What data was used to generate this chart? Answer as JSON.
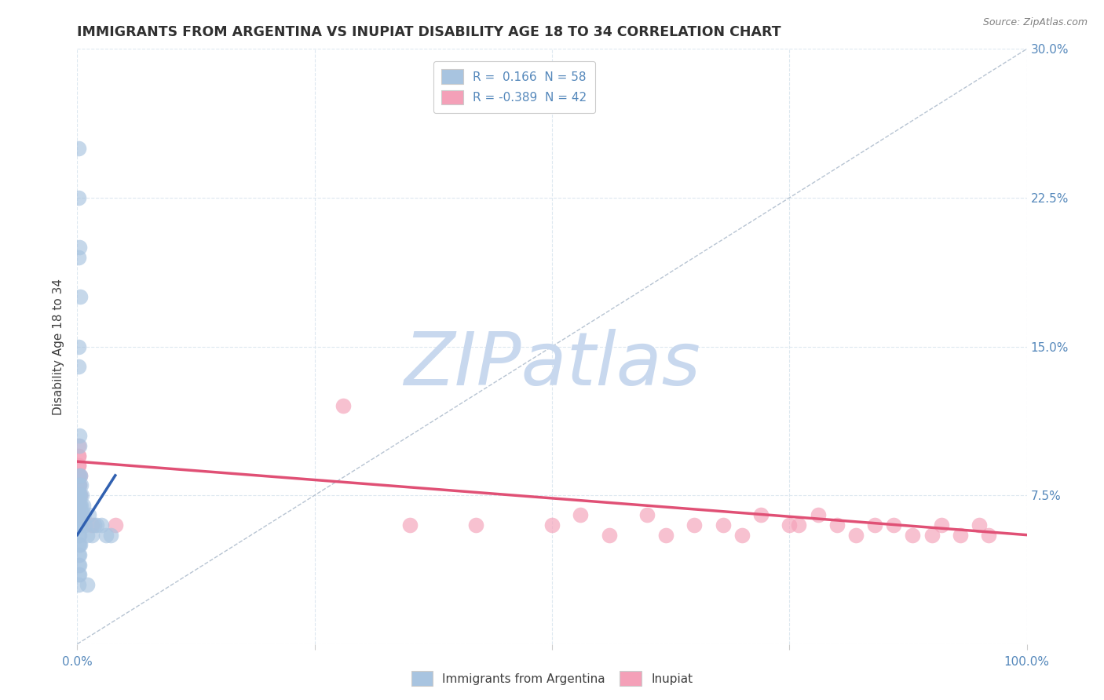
{
  "title": "IMMIGRANTS FROM ARGENTINA VS INUPIAT DISABILITY AGE 18 TO 34 CORRELATION CHART",
  "source": "Source: ZipAtlas.com",
  "ylabel": "Disability Age 18 to 34",
  "xlim": [
    0,
    1.0
  ],
  "ylim": [
    0,
    0.3
  ],
  "xtick_positions": [
    0.0,
    0.25,
    0.5,
    0.75,
    1.0
  ],
  "xtick_labels": [
    "0.0%",
    "",
    "",
    "",
    "100.0%"
  ],
  "ytick_positions": [
    0.0,
    0.075,
    0.15,
    0.225,
    0.3
  ],
  "ytick_labels_right": [
    "",
    "7.5%",
    "15.0%",
    "22.5%",
    "30.0%"
  ],
  "legend_r1": "R =  0.166  N = 58",
  "legend_r2": "R = -0.389  N = 42",
  "blue_color": "#a8c4e0",
  "pink_color": "#f4a0b8",
  "blue_line_color": "#3060b0",
  "pink_line_color": "#e05075",
  "diag_line_color": "#b0bece",
  "watermark_color": "#c8d8ee",
  "background_color": "#ffffff",
  "grid_color": "#dde8f0",
  "title_color": "#303030",
  "axis_color": "#5588bb",
  "source_color": "#808080",
  "blue_scatter_x": [
    0.001,
    0.001,
    0.001,
    0.001,
    0.001,
    0.001,
    0.001,
    0.001,
    0.001,
    0.001,
    0.001,
    0.001,
    0.001,
    0.001,
    0.001,
    0.002,
    0.002,
    0.002,
    0.002,
    0.002,
    0.002,
    0.002,
    0.002,
    0.002,
    0.002,
    0.002,
    0.003,
    0.003,
    0.003,
    0.003,
    0.003,
    0.003,
    0.004,
    0.004,
    0.004,
    0.005,
    0.005,
    0.006,
    0.007,
    0.008,
    0.01,
    0.01,
    0.012,
    0.015,
    0.018,
    0.02,
    0.025,
    0.03,
    0.035,
    0.002,
    0.002,
    0.001,
    0.001,
    0.003,
    0.001,
    0.002,
    0.001,
    0.001
  ],
  "blue_scatter_y": [
    0.03,
    0.035,
    0.04,
    0.045,
    0.05,
    0.055,
    0.06,
    0.06,
    0.065,
    0.065,
    0.07,
    0.07,
    0.075,
    0.075,
    0.08,
    0.035,
    0.04,
    0.045,
    0.05,
    0.055,
    0.06,
    0.065,
    0.07,
    0.075,
    0.08,
    0.085,
    0.05,
    0.06,
    0.065,
    0.07,
    0.075,
    0.085,
    0.06,
    0.07,
    0.08,
    0.065,
    0.075,
    0.07,
    0.065,
    0.06,
    0.055,
    0.03,
    0.065,
    0.055,
    0.06,
    0.06,
    0.06,
    0.055,
    0.055,
    0.1,
    0.105,
    0.14,
    0.15,
    0.175,
    0.195,
    0.2,
    0.225,
    0.25
  ],
  "pink_scatter_x": [
    0.001,
    0.001,
    0.001,
    0.001,
    0.001,
    0.001,
    0.001,
    0.001,
    0.001,
    0.001,
    0.002,
    0.002,
    0.002,
    0.003,
    0.003,
    0.015,
    0.04,
    0.28,
    0.35,
    0.42,
    0.5,
    0.53,
    0.56,
    0.6,
    0.62,
    0.65,
    0.68,
    0.7,
    0.72,
    0.75,
    0.76,
    0.78,
    0.8,
    0.82,
    0.84,
    0.86,
    0.88,
    0.9,
    0.91,
    0.93,
    0.95,
    0.96
  ],
  "pink_scatter_y": [
    0.09,
    0.095,
    0.1,
    0.085,
    0.08,
    0.095,
    0.09,
    0.075,
    0.07,
    0.085,
    0.065,
    0.07,
    0.08,
    0.075,
    0.085,
    0.06,
    0.06,
    0.12,
    0.06,
    0.06,
    0.06,
    0.065,
    0.055,
    0.065,
    0.055,
    0.06,
    0.06,
    0.055,
    0.065,
    0.06,
    0.06,
    0.065,
    0.06,
    0.055,
    0.06,
    0.06,
    0.055,
    0.055,
    0.06,
    0.055,
    0.06,
    0.055
  ],
  "blue_line_x0": 0.0,
  "blue_line_x1": 0.04,
  "blue_line_y0": 0.055,
  "blue_line_y1": 0.085,
  "pink_line_x0": 0.0,
  "pink_line_x1": 1.0,
  "pink_line_y0": 0.092,
  "pink_line_y1": 0.055
}
